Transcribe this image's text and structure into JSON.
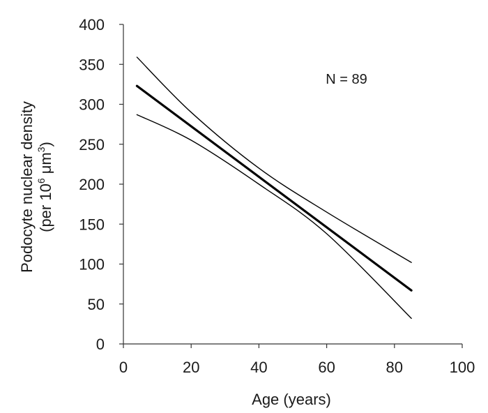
{
  "chart_data": {
    "type": "line",
    "title": "",
    "xlabel": "Age (years)",
    "ylabel_line1": "Podocyte nuclear density",
    "ylabel_line2_prefix": "(per 10",
    "ylabel_line2_exp1": "6",
    "ylabel_line2_mid": " μm",
    "ylabel_line2_exp2": "3",
    "ylabel_line2_suffix": ")",
    "xlim": [
      0,
      100
    ],
    "ylim": [
      0,
      400
    ],
    "xticks": [
      0,
      20,
      40,
      60,
      80,
      100
    ],
    "yticks": [
      0,
      50,
      100,
      150,
      200,
      250,
      300,
      350,
      400
    ],
    "grid": false,
    "annotation": "N = 89",
    "series": [
      {
        "role": "regression",
        "x": [
          4,
          85
        ],
        "y": [
          323,
          67
        ]
      },
      {
        "role": "upper-confidence-limit",
        "x": [
          4,
          20,
          40,
          60,
          85
        ],
        "y": [
          359,
          290,
          220,
          165,
          102
        ]
      },
      {
        "role": "lower-confidence-limit",
        "x": [
          4,
          20,
          40,
          60,
          85
        ],
        "y": [
          287,
          255,
          200,
          138,
          32
        ]
      }
    ]
  },
  "colors": {
    "line": "#000000",
    "axis": "#333333",
    "text": "#1a1a1a"
  }
}
